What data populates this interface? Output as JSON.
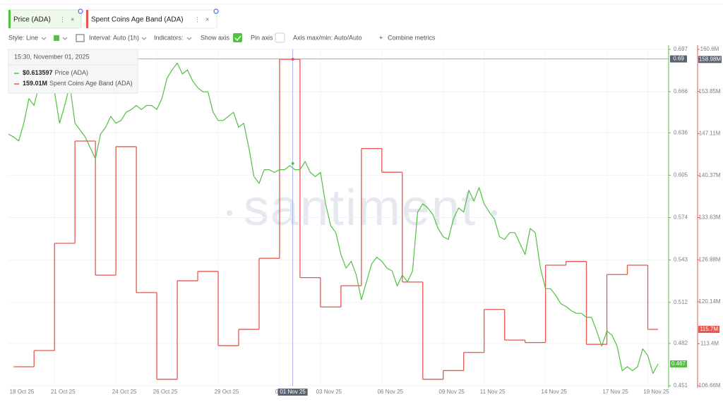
{
  "chart_data": {
    "type": "line",
    "xlim": [
      "2025-10-18 18:00",
      "2025-11-19 12:00"
    ],
    "xticks": [
      {
        "value": "2025-10-18",
        "label": "18 Oct 25"
      },
      {
        "value": "2025-10-21",
        "label": "21 Oct 25"
      },
      {
        "value": "2025-10-24",
        "label": "24 Oct 25"
      },
      {
        "value": "2025-10-26",
        "label": "26 Oct 25"
      },
      {
        "value": "2025-10-29",
        "label": "29 Oct 25"
      },
      {
        "value": "2025-11-01",
        "label": "01 Nov 25"
      },
      {
        "value": "2025-11-03",
        "label": "03 Nov 25"
      },
      {
        "value": "2025-11-06",
        "label": "06 Nov 25"
      },
      {
        "value": "2025-11-09",
        "label": "09 Nov 25"
      },
      {
        "value": "2025-11-11",
        "label": "11 Nov 25"
      },
      {
        "value": "2025-11-14",
        "label": "14 Nov 25"
      },
      {
        "value": "2025-11-17",
        "label": "17 Nov 25"
      },
      {
        "value": "2025-11-19",
        "label": "19 Nov 25"
      }
    ],
    "ylim": [
      0.451,
      0.697
    ],
    "yticks": [
      0.451,
      0.482,
      0.512,
      0.543,
      0.574,
      0.605,
      0.636,
      0.666,
      0.697
    ],
    "y2lim": [
      106660000,
      160600000
    ],
    "y2ticks": [
      {
        "value": 106660000,
        "label": "106.66M"
      },
      {
        "value": 113400000,
        "label": "113.4M"
      },
      {
        "value": 120140000,
        "label": "120.14M"
      },
      {
        "value": 126880000,
        "label": "126.88M"
      },
      {
        "value": 133630000,
        "label": "133.63M"
      },
      {
        "value": 140370000,
        "label": "140.37M"
      },
      {
        "value": 147110000,
        "label": "147.11M"
      },
      {
        "value": 153850000,
        "label": "153.85M"
      },
      {
        "value": 160600000,
        "label": "160.6M"
      }
    ],
    "grid": true,
    "series": [
      {
        "name": "Price (ADA)",
        "color": "#52c041",
        "axis": "y",
        "step": false,
        "x": [
          "2025-10-18 18:00",
          "2025-10-19 00:00",
          "2025-10-19 06:00",
          "2025-10-19 12:00",
          "2025-10-19 18:00",
          "2025-10-20 00:00",
          "2025-10-20 06:00",
          "2025-10-20 12:00",
          "2025-10-20 18:00",
          "2025-10-21 00:00",
          "2025-10-21 06:00",
          "2025-10-21 12:00",
          "2025-10-21 18:00",
          "2025-10-22 00:00",
          "2025-10-22 06:00",
          "2025-10-22 12:00",
          "2025-10-22 18:00",
          "2025-10-23 00:00",
          "2025-10-23 06:00",
          "2025-10-23 12:00",
          "2025-10-23 18:00",
          "2025-10-24 00:00",
          "2025-10-24 06:00",
          "2025-10-24 12:00",
          "2025-10-24 18:00",
          "2025-10-25 00:00",
          "2025-10-25 06:00",
          "2025-10-25 12:00",
          "2025-10-25 18:00",
          "2025-10-26 00:00",
          "2025-10-26 06:00",
          "2025-10-26 12:00",
          "2025-10-26 18:00",
          "2025-10-27 00:00",
          "2025-10-27 06:00",
          "2025-10-27 12:00",
          "2025-10-27 18:00",
          "2025-10-28 00:00",
          "2025-10-28 06:00",
          "2025-10-28 12:00",
          "2025-10-28 18:00",
          "2025-10-29 00:00",
          "2025-10-29 06:00",
          "2025-10-29 12:00",
          "2025-10-29 18:00",
          "2025-10-30 00:00",
          "2025-10-30 06:00",
          "2025-10-30 12:00",
          "2025-10-30 18:00",
          "2025-10-31 00:00",
          "2025-10-31 06:00",
          "2025-10-31 12:00",
          "2025-10-31 18:00",
          "2025-11-01 00:00",
          "2025-11-01 06:00",
          "2025-11-01 12:00",
          "2025-11-01 18:00",
          "2025-11-02 00:00",
          "2025-11-02 06:00",
          "2025-11-02 12:00",
          "2025-11-02 18:00",
          "2025-11-03 00:00",
          "2025-11-03 06:00",
          "2025-11-03 12:00",
          "2025-11-03 18:00",
          "2025-11-04 00:00",
          "2025-11-04 06:00",
          "2025-11-04 12:00",
          "2025-11-04 18:00",
          "2025-11-05 00:00",
          "2025-11-05 06:00",
          "2025-11-05 12:00",
          "2025-11-05 18:00",
          "2025-11-06 00:00",
          "2025-11-06 06:00",
          "2025-11-06 12:00",
          "2025-11-06 18:00",
          "2025-11-07 00:00",
          "2025-11-07 06:00",
          "2025-11-07 12:00",
          "2025-11-07 18:00",
          "2025-11-08 00:00",
          "2025-11-08 06:00",
          "2025-11-08 12:00",
          "2025-11-08 18:00",
          "2025-11-09 00:00",
          "2025-11-09 06:00",
          "2025-11-09 12:00",
          "2025-11-09 18:00",
          "2025-11-10 00:00",
          "2025-11-10 06:00",
          "2025-11-10 12:00",
          "2025-11-10 18:00",
          "2025-11-11 00:00",
          "2025-11-11 06:00",
          "2025-11-11 12:00",
          "2025-11-11 18:00",
          "2025-11-12 00:00",
          "2025-11-12 06:00",
          "2025-11-12 12:00",
          "2025-11-12 18:00",
          "2025-11-13 00:00",
          "2025-11-13 06:00",
          "2025-11-13 12:00",
          "2025-11-13 18:00",
          "2025-11-14 00:00",
          "2025-11-14 06:00",
          "2025-11-14 12:00",
          "2025-11-14 18:00",
          "2025-11-15 00:00",
          "2025-11-15 06:00",
          "2025-11-15 12:00",
          "2025-11-15 18:00",
          "2025-11-16 00:00",
          "2025-11-16 06:00",
          "2025-11-16 12:00",
          "2025-11-16 18:00",
          "2025-11-17 00:00",
          "2025-11-17 06:00",
          "2025-11-17 12:00",
          "2025-11-17 18:00",
          "2025-11-18 00:00",
          "2025-11-18 06:00",
          "2025-11-18 12:00",
          "2025-11-18 18:00",
          "2025-11-19 00:00",
          "2025-11-19 06:00",
          "2025-11-19 12:00"
        ],
        "values": [
          0.635,
          0.633,
          0.63,
          0.643,
          0.661,
          0.656,
          0.671,
          0.666,
          0.676,
          0.666,
          0.643,
          0.656,
          0.671,
          0.643,
          0.638,
          0.633,
          0.625,
          0.617,
          0.635,
          0.64,
          0.648,
          0.643,
          0.645,
          0.651,
          0.653,
          0.656,
          0.653,
          0.656,
          0.656,
          0.653,
          0.661,
          0.676,
          0.682,
          0.687,
          0.679,
          0.682,
          0.674,
          0.669,
          0.666,
          0.666,
          0.651,
          0.645,
          0.645,
          0.648,
          0.651,
          0.64,
          0.643,
          0.625,
          0.604,
          0.599,
          0.609,
          0.609,
          0.607,
          0.609,
          0.609,
          0.612,
          0.609,
          0.609,
          0.615,
          0.607,
          0.604,
          0.607,
          0.584,
          0.568,
          0.563,
          0.547,
          0.537,
          0.542,
          0.532,
          0.514,
          0.527,
          0.54,
          0.545,
          0.542,
          0.537,
          0.535,
          0.524,
          0.532,
          0.527,
          0.535,
          0.578,
          0.584,
          0.581,
          0.576,
          0.566,
          0.56,
          0.558,
          0.573,
          0.581,
          0.578,
          0.594,
          0.586,
          0.596,
          0.584,
          0.578,
          0.573,
          0.56,
          0.558,
          0.563,
          0.563,
          0.555,
          0.547,
          0.566,
          0.563,
          0.537,
          0.522,
          0.522,
          0.517,
          0.511,
          0.509,
          0.506,
          0.504,
          0.504,
          0.501,
          0.501,
          0.491,
          0.48,
          0.491,
          0.488,
          0.48,
          0.462,
          0.465,
          0.462,
          0.465,
          0.478,
          0.473,
          0.46,
          0.467
        ]
      },
      {
        "name": "Spent Coins Age Band (ADA)",
        "color": "#e8564e",
        "axis": "y2",
        "step": true,
        "x": [
          "2025-10-19",
          "2025-10-20",
          "2025-10-21",
          "2025-10-22",
          "2025-10-23",
          "2025-10-24",
          "2025-10-25",
          "2025-10-26",
          "2025-10-27",
          "2025-10-28",
          "2025-10-29",
          "2025-10-30",
          "2025-10-31",
          "2025-11-01",
          "2025-11-02",
          "2025-11-03",
          "2025-11-04",
          "2025-11-05",
          "2025-11-06",
          "2025-11-07",
          "2025-11-08",
          "2025-11-09",
          "2025-11-10",
          "2025-11-11",
          "2025-11-12",
          "2025-11-13",
          "2025-11-14",
          "2025-11-15",
          "2025-11-16",
          "2025-11-17",
          "2025-11-18",
          "2025-11-19"
        ],
        "values": [
          109710000,
          112310000,
          129500000,
          145900000,
          124400000,
          145000000,
          121600000,
          107700000,
          123500000,
          125000000,
          113100000,
          115700000,
          127100000,
          159010000,
          124000000,
          119300000,
          122700000,
          144700000,
          140900000,
          123300000,
          107700000,
          109100000,
          112000000,
          118900000,
          114000000,
          113600000,
          126000000,
          126600000,
          113300000,
          124500000,
          126000000,
          115700000
        ]
      }
    ],
    "crosshair": {
      "x": "2025-11-01 15:30",
      "x_label": "01 Nov 25",
      "y": 0.69,
      "y2": {
        "value": 158980000,
        "label": "158.98M"
      }
    },
    "last_value": {
      "y": 0.467,
      "y2": {
        "value": 115700000,
        "label": "115.7M"
      }
    },
    "tooltip": {
      "time": "15:30, November 01, 2025",
      "values": [
        0.613597,
        159010000
      ],
      "value_labels": [
        "$0.613597",
        "159.01M"
      ]
    }
  },
  "toolbar": {
    "style": "Style: Line",
    "interval": "Interval: Auto (1h)",
    "indicators": "Indicators:",
    "show_axis": "Show axis",
    "pin_axis": "Pin axis",
    "axis_minmax": "Axis max/min: Auto/Auto",
    "combine": "Combine metrics"
  },
  "watermark": "santiment"
}
